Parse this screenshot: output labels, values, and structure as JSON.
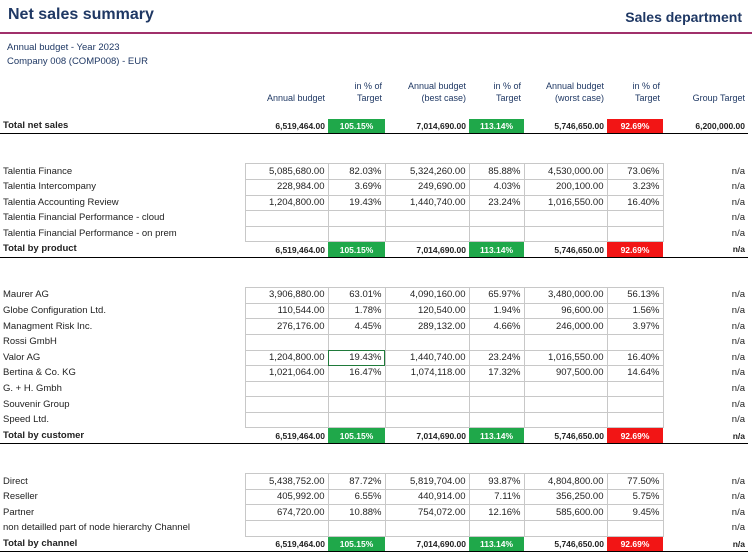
{
  "header": {
    "title": "Net sales summary",
    "department": "Sales department"
  },
  "subtitle": {
    "line1": "Annual budget - Year 2023",
    "line2": "Company 008 (COMP008) - EUR"
  },
  "columns": [
    "Annual budget",
    "in % of Target",
    "Annual budget (best case)",
    "in % of Target",
    "Annual budget (worst case)",
    "in % of Target",
    "Group Target"
  ],
  "total_net_sales": {
    "label": "Total net sales",
    "values": [
      "6,519,464.00",
      "105.15%",
      "7,014,690.00",
      "113.14%",
      "5,746,650.00",
      "92.69%",
      "6,200,000.00"
    ]
  },
  "product_rows": [
    {
      "label": "Talentia Finance",
      "values": [
        "5,085,680.00",
        "82.03%",
        "5,324,260.00",
        "85.88%",
        "4,530,000.00",
        "73.06%",
        "n/a"
      ]
    },
    {
      "label": "Talentia Intercompany",
      "values": [
        "228,984.00",
        "3.69%",
        "249,690.00",
        "4.03%",
        "200,100.00",
        "3.23%",
        "n/a"
      ]
    },
    {
      "label": "Talentia Accounting Review",
      "values": [
        "1,204,800.00",
        "19.43%",
        "1,440,740.00",
        "23.24%",
        "1,016,550.00",
        "16.40%",
        "n/a"
      ]
    },
    {
      "label": "Talentia Financial Performance - cloud",
      "values": [
        "",
        "",
        "",
        "",
        "",
        "",
        "n/a"
      ]
    },
    {
      "label": "Talentia Financial Performance - on prem",
      "values": [
        "",
        "",
        "",
        "",
        "",
        "",
        "n/a"
      ]
    }
  ],
  "total_by_product": {
    "label": "Total by product",
    "values": [
      "6,519,464.00",
      "105.15%",
      "7,014,690.00",
      "113.14%",
      "5,746,650.00",
      "92.69%",
      "n/a"
    ]
  },
  "customer_rows": [
    {
      "label": "Maurer AG",
      "values": [
        "3,906,880.00",
        "63.01%",
        "4,090,160.00",
        "65.97%",
        "3,480,000.00",
        "56.13%",
        "n/a"
      ]
    },
    {
      "label": "Globe Configuration Ltd.",
      "values": [
        "110,544.00",
        "1.78%",
        "120,540.00",
        "1.94%",
        "96,600.00",
        "1.56%",
        "n/a"
      ]
    },
    {
      "label": "Managment Risk Inc.",
      "values": [
        "276,176.00",
        "4.45%",
        "289,132.00",
        "4.66%",
        "246,000.00",
        "3.97%",
        "n/a"
      ]
    },
    {
      "label": "Rossi GmbH",
      "values": [
        "",
        "",
        "",
        "",
        "",
        "",
        "n/a"
      ]
    },
    {
      "label": "Valor AG",
      "values": [
        "1,204,800.00",
        "19.43%",
        "1,440,740.00",
        "23.24%",
        "1,016,550.00",
        "16.40%",
        "n/a"
      ]
    },
    {
      "label": "Bertina & Co. KG",
      "values": [
        "1,021,064.00",
        "16.47%",
        "1,074,118.00",
        "17.32%",
        "907,500.00",
        "14.64%",
        "n/a"
      ]
    },
    {
      "label": "G. + H. Gmbh",
      "values": [
        "",
        "",
        "",
        "",
        "",
        "",
        "n/a"
      ]
    },
    {
      "label": "Souvenir Group",
      "values": [
        "",
        "",
        "",
        "",
        "",
        "",
        "n/a"
      ]
    },
    {
      "label": "Speed Ltd.",
      "values": [
        "",
        "",
        "",
        "",
        "",
        "",
        "n/a"
      ]
    }
  ],
  "total_by_customer": {
    "label": "Total by customer",
    "values": [
      "6,519,464.00",
      "105.15%",
      "7,014,690.00",
      "113.14%",
      "5,746,650.00",
      "92.69%",
      "n/a"
    ]
  },
  "channel_rows": [
    {
      "label": "Direct",
      "values": [
        "5,438,752.00",
        "87.72%",
        "5,819,704.00",
        "93.87%",
        "4,804,800.00",
        "77.50%",
        "n/a"
      ]
    },
    {
      "label": "Reseller",
      "values": [
        "405,992.00",
        "6.55%",
        "440,914.00",
        "7.11%",
        "356,250.00",
        "5.75%",
        "n/a"
      ]
    },
    {
      "label": "Partner",
      "values": [
        "674,720.00",
        "10.88%",
        "754,072.00",
        "12.16%",
        "585,600.00",
        "9.45%",
        "n/a"
      ]
    },
    {
      "label": "non detailled part of node hierarchy Channel",
      "values": [
        "",
        "",
        "",
        "",
        "",
        "",
        "n/a"
      ]
    }
  ],
  "total_by_channel": {
    "label": "Total by channel",
    "values": [
      "6,519,464.00",
      "105.15%",
      "7,014,690.00",
      "113.14%",
      "5,746,650.00",
      "92.69%",
      "n/a"
    ]
  },
  "colors": {
    "title": "#1f3864",
    "accent_line": "#a0306b",
    "good": "#1fa84a",
    "bad": "#f21515"
  }
}
